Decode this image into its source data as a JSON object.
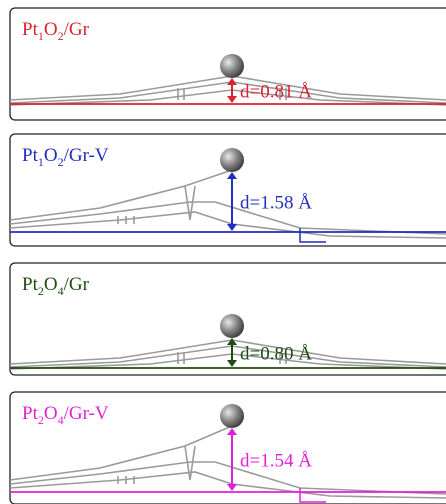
{
  "panels": [
    {
      "label": [
        "Pt",
        "1",
        "O",
        "2",
        "/Gr"
      ],
      "distance": "d=0.81 Å",
      "color": "#d9232e"
    },
    {
      "label": [
        "Pt",
        "1",
        "O",
        "2",
        "/Gr-V"
      ],
      "distance": "d=1.58 Å",
      "color": "#1f2fbf"
    },
    {
      "label": [
        "Pt",
        "2",
        "O",
        "4",
        "/Gr"
      ],
      "distance": "d=0.80 Å",
      "color": "#1e4d12"
    },
    {
      "label": [
        "Pt",
        "2",
        "O",
        "4",
        "/Gr-V"
      ],
      "distance": "d=1.54 Å",
      "color": "#e020d8"
    }
  ]
}
